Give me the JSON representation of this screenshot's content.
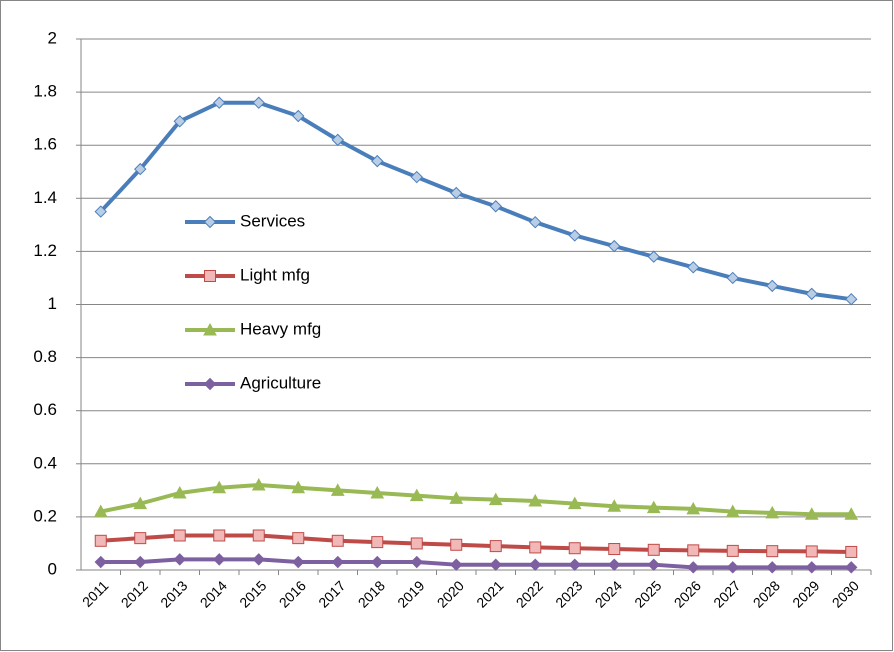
{
  "chart_data": {
    "type": "line",
    "categories": [
      "2011",
      "2012",
      "2013",
      "2014",
      "2015",
      "2016",
      "2017",
      "2018",
      "2019",
      "2020",
      "2021",
      "2022",
      "2023",
      "2024",
      "2025",
      "2026",
      "2027",
      "2028",
      "2029",
      "2030"
    ],
    "series": [
      {
        "name": "Services",
        "color": "#4a7ebb",
        "marker": "diamond",
        "marker_fill": "#b9cde5",
        "values": [
          1.35,
          1.51,
          1.69,
          1.76,
          1.76,
          1.71,
          1.62,
          1.54,
          1.48,
          1.42,
          1.37,
          1.31,
          1.26,
          1.22,
          1.18,
          1.14,
          1.1,
          1.07,
          1.04,
          1.02
        ]
      },
      {
        "name": "Light mfg",
        "color": "#be4b48",
        "marker": "square",
        "marker_fill": "#f2b8b7",
        "values": [
          0.11,
          0.12,
          0.13,
          0.13,
          0.13,
          0.12,
          0.11,
          0.105,
          0.1,
          0.095,
          0.09,
          0.085,
          0.082,
          0.079,
          0.076,
          0.074,
          0.072,
          0.071,
          0.07,
          0.068
        ]
      },
      {
        "name": "Heavy mfg",
        "color": "#98b954",
        "marker": "triangle",
        "marker_fill": "#98b954",
        "values": [
          0.22,
          0.25,
          0.29,
          0.31,
          0.32,
          0.31,
          0.3,
          0.29,
          0.28,
          0.27,
          0.265,
          0.26,
          0.25,
          0.24,
          0.235,
          0.23,
          0.22,
          0.215,
          0.21,
          0.21
        ]
      },
      {
        "name": "Agriculture",
        "color": "#7d60a0",
        "marker": "diamond",
        "marker_fill": "#7d60a0",
        "values": [
          0.03,
          0.03,
          0.04,
          0.04,
          0.04,
          0.03,
          0.03,
          0.03,
          0.03,
          0.02,
          0.02,
          0.02,
          0.02,
          0.02,
          0.02,
          0.01,
          0.01,
          0.01,
          0.01,
          0.01
        ]
      }
    ],
    "ylim": [
      0,
      2
    ],
    "yticks": [
      0,
      0.2,
      0.4,
      0.6,
      0.8,
      1,
      1.2,
      1.4,
      1.6,
      1.8,
      2
    ],
    "grid": true,
    "legend": "center-left"
  }
}
